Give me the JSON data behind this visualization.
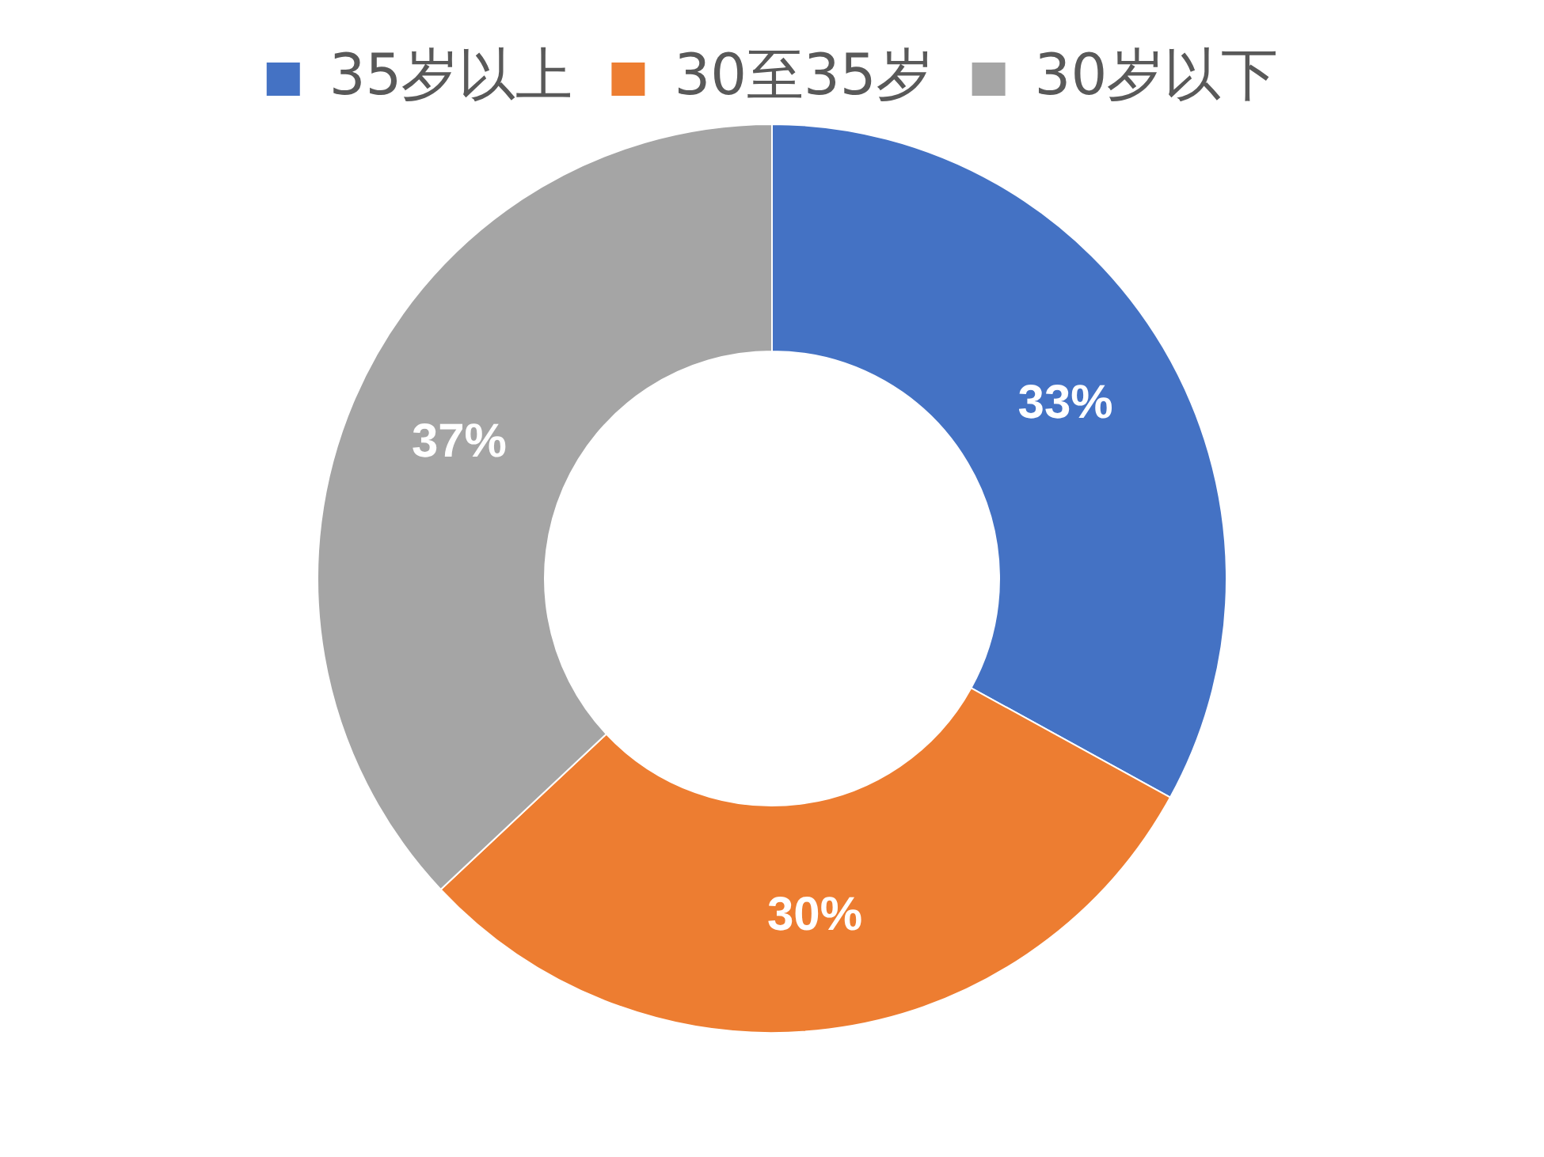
{
  "chart_data": {
    "type": "donut",
    "categories": [
      "35岁以上",
      "30至35岁",
      "30岁以下"
    ],
    "values": [
      33,
      30,
      37
    ],
    "colors": [
      "#4472c4",
      "#ed7d31",
      "#a5a5a5"
    ],
    "value_labels": [
      "33%",
      "30%",
      "37%"
    ],
    "legend": "top"
  }
}
